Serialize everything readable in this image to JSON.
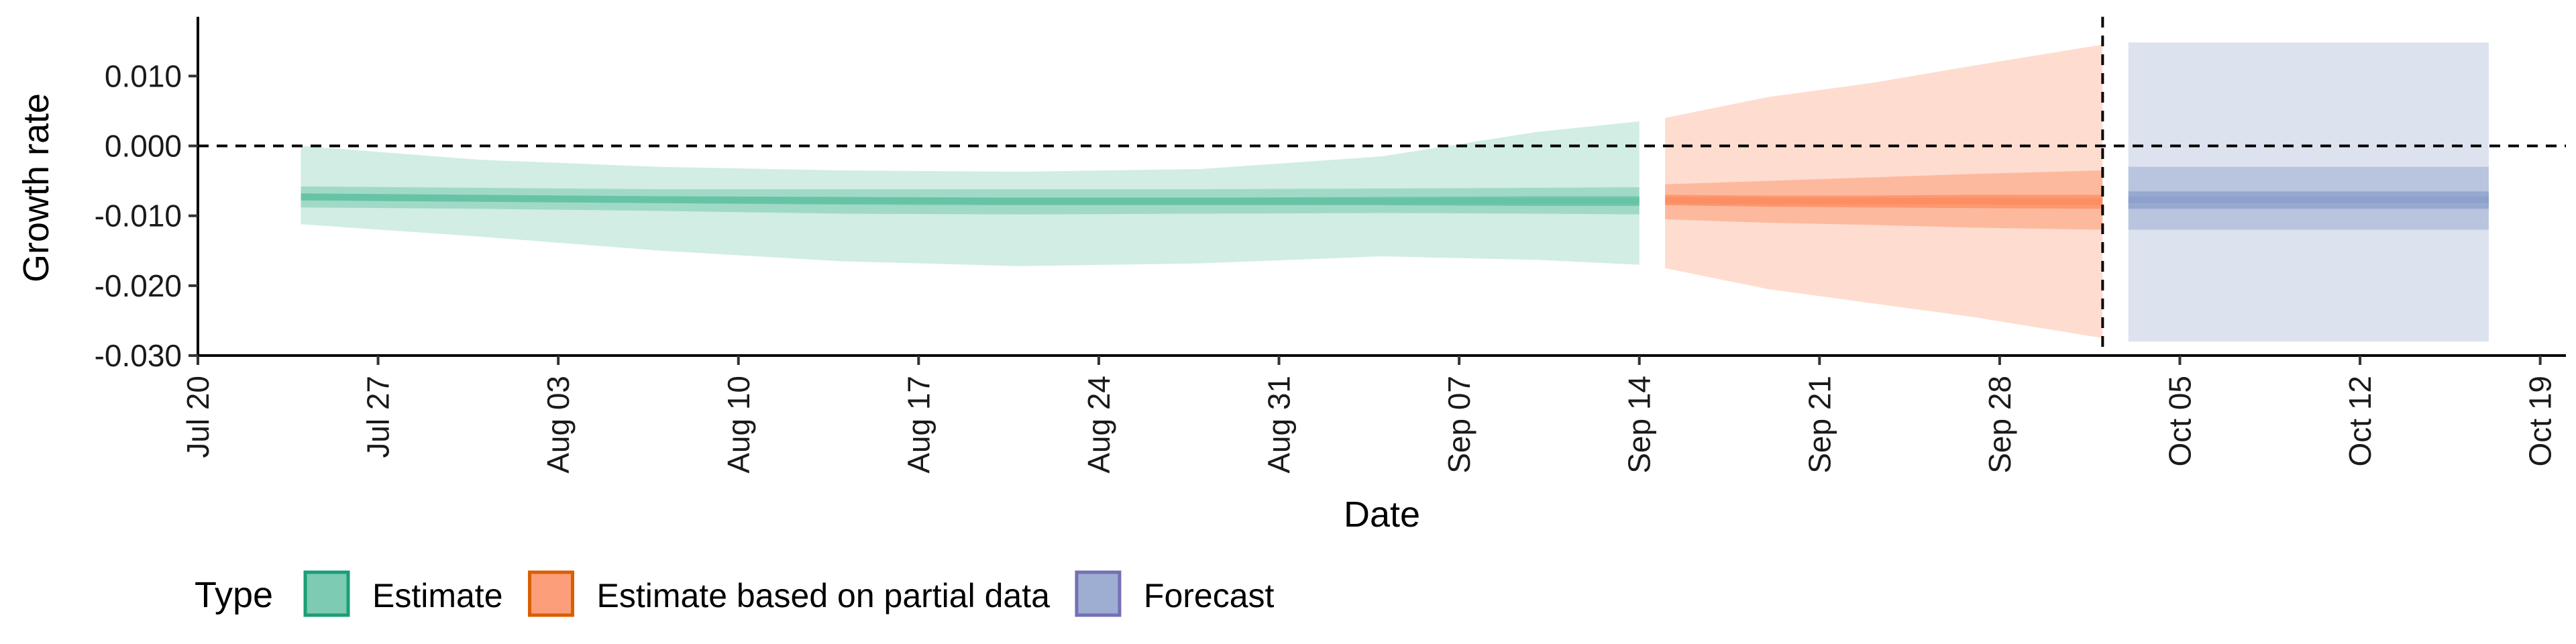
{
  "chart_data": {
    "type": "area",
    "title": "",
    "xlabel": "Date",
    "ylabel": "Growth rate",
    "ylim": [
      -0.03,
      0.018
    ],
    "xlim": [
      "2020-07-20",
      "2020-10-20"
    ],
    "y_ticks": [
      0.01,
      0.0,
      -0.01,
      -0.02,
      -0.03
    ],
    "y_tick_labels": [
      "0.010",
      "0.000",
      "-0.010",
      "-0.020",
      "-0.030"
    ],
    "x_ticks": [
      "2020-07-20",
      "2020-07-27",
      "2020-08-03",
      "2020-08-10",
      "2020-08-17",
      "2020-08-24",
      "2020-08-31",
      "2020-09-07",
      "2020-09-14",
      "2020-09-21",
      "2020-09-28",
      "2020-10-05",
      "2020-10-12",
      "2020-10-19"
    ],
    "x_tick_labels": [
      "Jul 20",
      "Jul 27",
      "Aug 03",
      "Aug 10",
      "Aug 17",
      "Aug 24",
      "Aug 31",
      "Sep 07",
      "Sep 14",
      "Sep 21",
      "Sep 28",
      "Oct 05",
      "Oct 12",
      "Oct 19"
    ],
    "hline": 0.0,
    "vline": "2020-10-02",
    "grid": false,
    "legend": {
      "title": "Type",
      "placement": "bottom-left",
      "entries": [
        "Estimate",
        "Estimate based on partial data",
        "Forecast"
      ]
    },
    "series": [
      {
        "name": "Estimate",
        "fill": "#66c2a5",
        "stroke": "#1b9e77",
        "points": [
          {
            "x": "2020-07-24",
            "median": -0.0073,
            "lo20": -0.0078,
            "hi20": -0.0068,
            "lo50": -0.0088,
            "hi50": -0.0058,
            "lo90": -0.0112,
            "hi90": 0.0
          },
          {
            "x": "2020-07-31",
            "median": -0.0075,
            "lo20": -0.008,
            "hi20": -0.007,
            "lo50": -0.009,
            "hi50": -0.006,
            "lo90": -0.013,
            "hi90": -0.002
          },
          {
            "x": "2020-08-07",
            "median": -0.0077,
            "lo20": -0.0082,
            "hi20": -0.0072,
            "lo50": -0.0093,
            "hi50": -0.0062,
            "lo90": -0.015,
            "hi90": -0.003
          },
          {
            "x": "2020-08-14",
            "median": -0.0078,
            "lo20": -0.0084,
            "hi20": -0.0073,
            "lo50": -0.0097,
            "hi50": -0.0062,
            "lo90": -0.0165,
            "hi90": -0.0035
          },
          {
            "x": "2020-08-21",
            "median": -0.0079,
            "lo20": -0.0085,
            "hi20": -0.0074,
            "lo50": -0.0098,
            "hi50": -0.0062,
            "lo90": -0.0172,
            "hi90": -0.0037
          },
          {
            "x": "2020-08-28",
            "median": -0.0079,
            "lo20": -0.0085,
            "hi20": -0.0074,
            "lo50": -0.0097,
            "hi50": -0.0062,
            "lo90": -0.0168,
            "hi90": -0.0033
          },
          {
            "x": "2020-09-04",
            "median": -0.0079,
            "lo20": -0.0085,
            "hi20": -0.0073,
            "lo50": -0.0096,
            "hi50": -0.0061,
            "lo90": -0.0158,
            "hi90": -0.0015
          },
          {
            "x": "2020-09-10",
            "median": -0.0079,
            "lo20": -0.0086,
            "hi20": -0.0072,
            "lo50": -0.0097,
            "hi50": -0.006,
            "lo90": -0.0163,
            "hi90": 0.002
          },
          {
            "x": "2020-09-14",
            "median": -0.0079,
            "lo20": -0.0086,
            "hi20": -0.0072,
            "lo50": -0.0098,
            "hi50": -0.0059,
            "lo90": -0.017,
            "hi90": 0.0035
          }
        ]
      },
      {
        "name": "Estimate based on partial data",
        "fill": "#fc8d62",
        "stroke": "#d95f02",
        "points": [
          {
            "x": "2020-09-15",
            "median": -0.0078,
            "lo20": -0.0085,
            "hi20": -0.007,
            "lo50": -0.0105,
            "hi50": -0.0055,
            "lo90": -0.0175,
            "hi90": 0.004
          },
          {
            "x": "2020-09-19",
            "median": -0.0079,
            "lo20": -0.0087,
            "hi20": -0.0071,
            "lo50": -0.011,
            "hi50": -0.005,
            "lo90": -0.0205,
            "hi90": 0.007
          },
          {
            "x": "2020-09-23",
            "median": -0.0079,
            "lo20": -0.0088,
            "hi20": -0.0071,
            "lo50": -0.0113,
            "hi50": -0.0045,
            "lo90": -0.0225,
            "hi90": 0.009
          },
          {
            "x": "2020-09-27",
            "median": -0.0079,
            "lo20": -0.0089,
            "hi20": -0.007,
            "lo50": -0.0117,
            "hi50": -0.004,
            "lo90": -0.0245,
            "hi90": 0.0115
          },
          {
            "x": "2020-10-02",
            "median": -0.008,
            "lo20": -0.009,
            "hi20": -0.007,
            "lo50": -0.012,
            "hi50": -0.0035,
            "lo90": -0.0275,
            "hi90": 0.0145
          }
        ]
      },
      {
        "name": "Forecast",
        "fill": "#8da0cb",
        "stroke": "#7570b3",
        "points": [
          {
            "x": "2020-10-03",
            "median": -0.0077,
            "lo20": -0.009,
            "hi20": -0.0065,
            "lo50": -0.012,
            "hi50": -0.003,
            "lo90": -0.028,
            "hi90": 0.0148
          },
          {
            "x": "2020-10-17",
            "median": -0.0077,
            "lo20": -0.009,
            "hi20": -0.0065,
            "lo50": -0.012,
            "hi50": -0.003,
            "lo90": -0.028,
            "hi90": 0.0148
          }
        ]
      }
    ]
  }
}
